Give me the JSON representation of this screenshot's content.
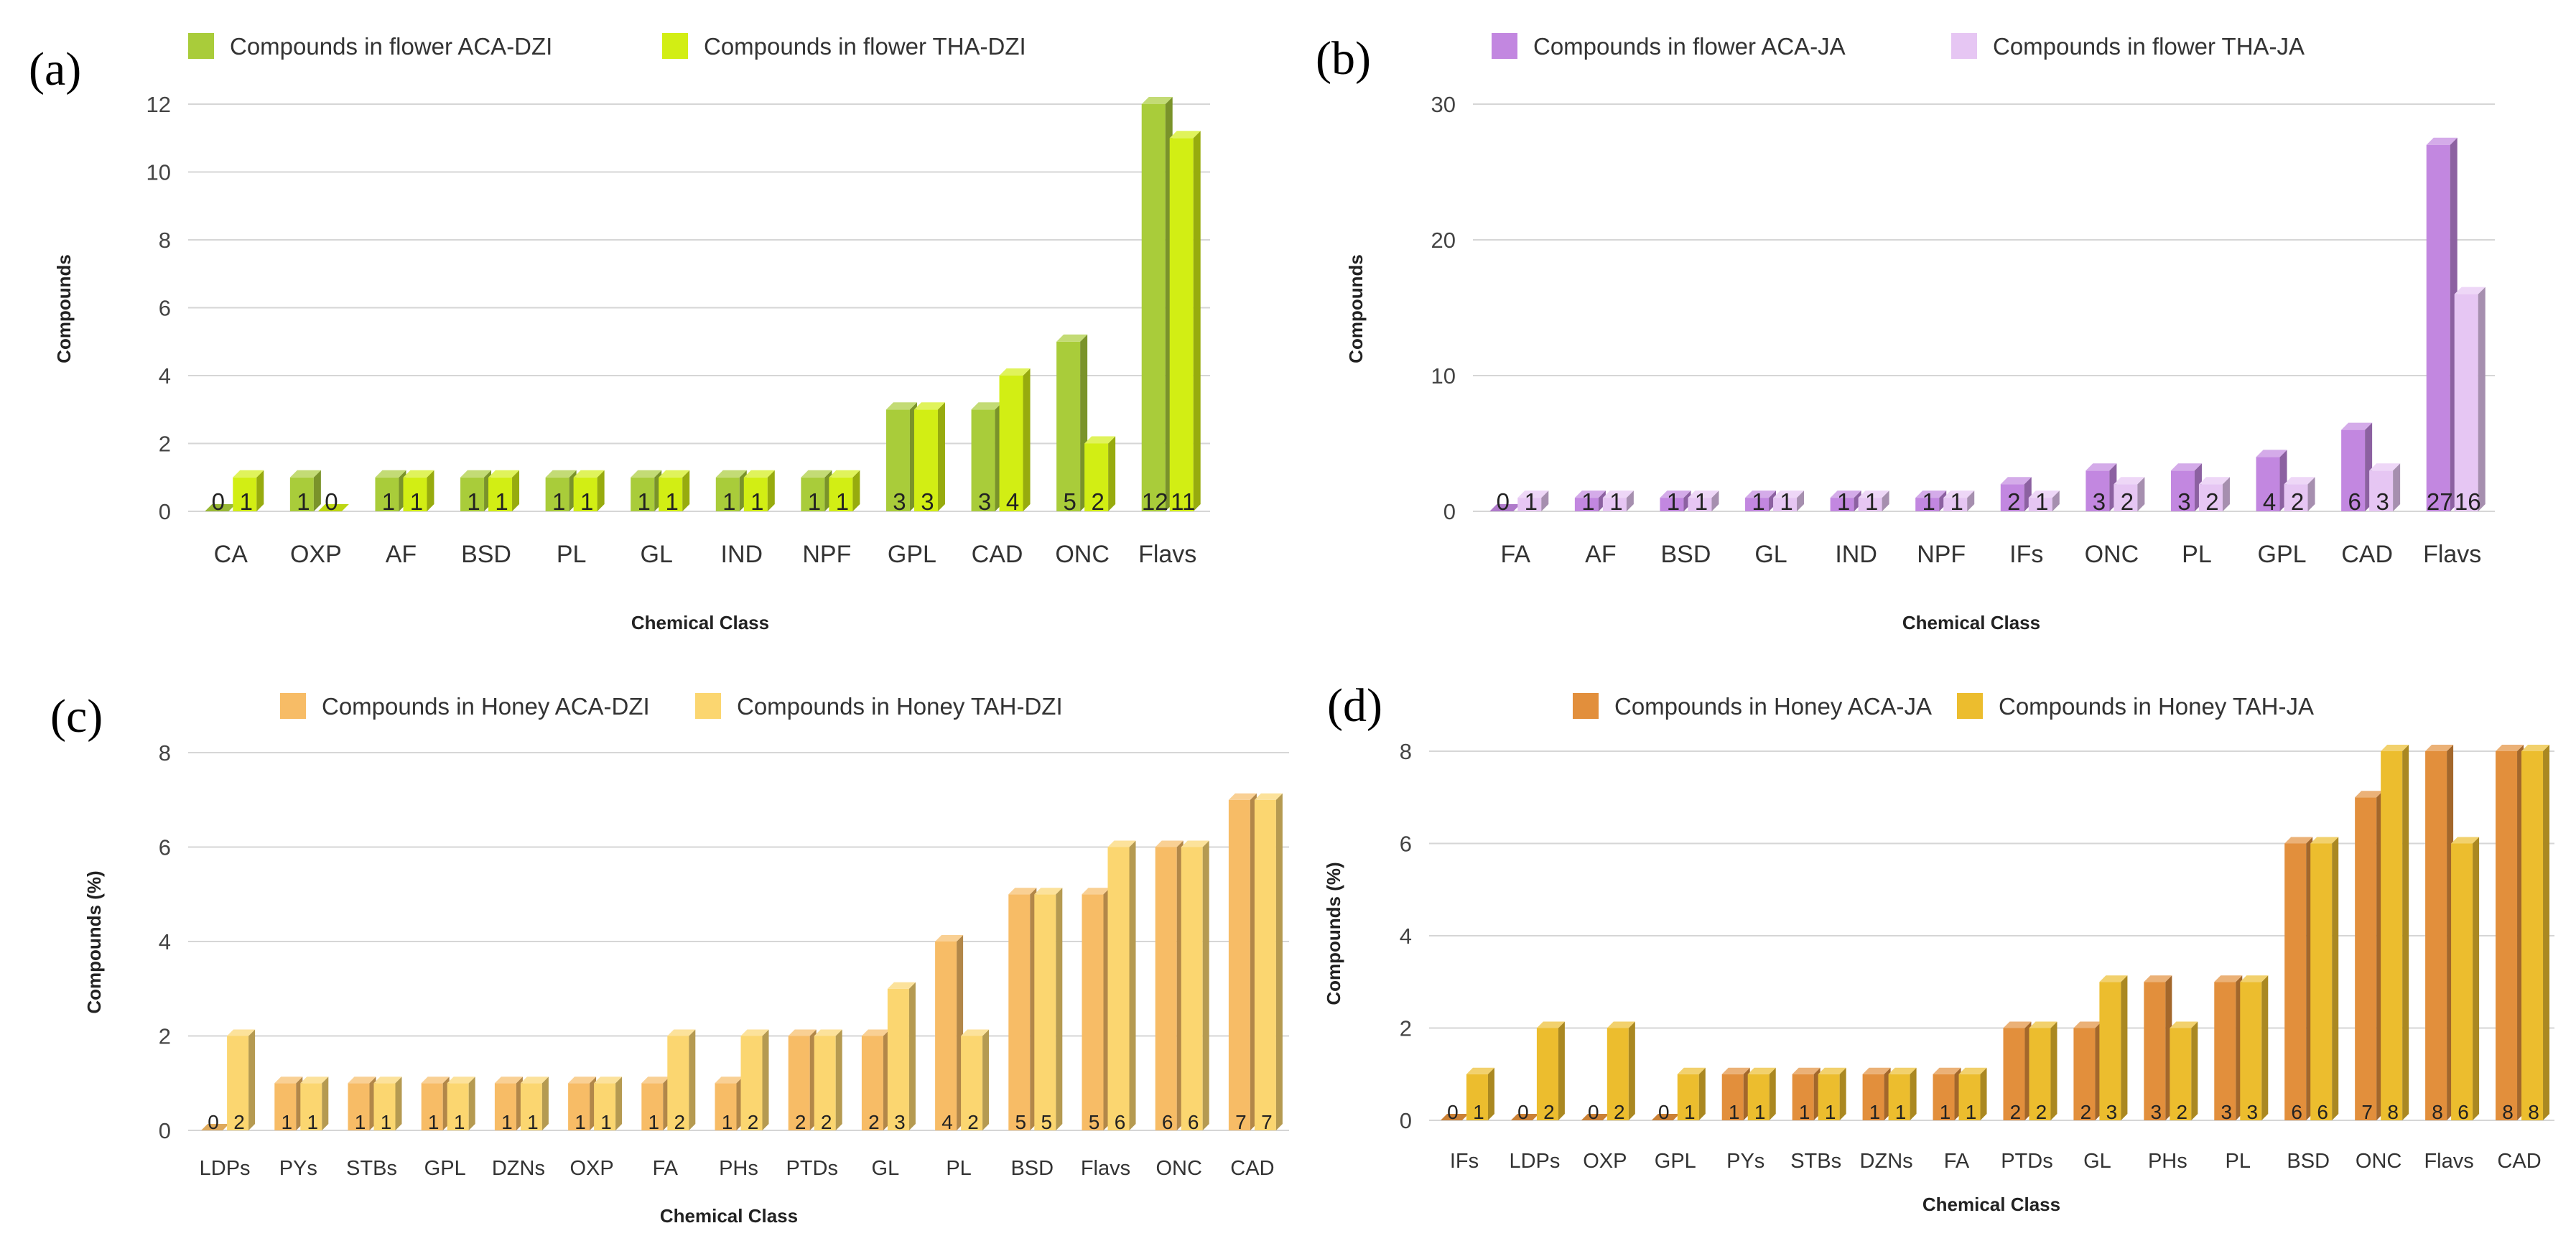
{
  "panels": [
    {
      "id": "a",
      "letter": "(a)",
      "legend": [
        "Compounds in flower ACA-DZI",
        "Compounds in flower THA-DZI"
      ],
      "colors": [
        "#a9cc3a",
        "#d2ee14"
      ],
      "chart_data": {
        "type": "bar",
        "title": "",
        "xlabel": "Chemical Class",
        "ylabel": "Compounds",
        "ylim": [
          0,
          12
        ],
        "yticks": [
          0,
          2,
          4,
          6,
          8,
          10,
          12
        ],
        "categories": [
          "CA",
          "OXP",
          "AF",
          "BSD",
          "PL",
          "GL",
          "IND",
          "NPF",
          "GPL",
          "CAD",
          "ONC",
          "Flavs"
        ],
        "series": [
          {
            "name": "Compounds in flower ACA-DZI",
            "values": [
              0,
              1,
              1,
              1,
              1,
              1,
              1,
              1,
              3,
              3,
              5,
              12
            ]
          },
          {
            "name": "Compounds in flower THA-DZI",
            "values": [
              1,
              0,
              1,
              1,
              1,
              1,
              1,
              1,
              3,
              4,
              2,
              11
            ]
          }
        ]
      }
    },
    {
      "id": "b",
      "letter": "(b)",
      "legend": [
        "Compounds in flower ACA-JA",
        "Compounds in flower THA-JA"
      ],
      "colors": [
        "#c287e0",
        "#e6c6f3"
      ],
      "chart_data": {
        "type": "bar",
        "title": "",
        "xlabel": "Chemical Class",
        "ylabel": "Compounds",
        "ylim": [
          0,
          30
        ],
        "yticks": [
          0,
          10,
          20,
          30
        ],
        "categories": [
          "FA",
          "AF",
          "BSD",
          "GL",
          "IND",
          "NPF",
          "IFs",
          "ONC",
          "PL",
          "GPL",
          "CAD",
          "Flavs"
        ],
        "series": [
          {
            "name": "Compounds in flower ACA-JA",
            "values": [
              0,
              1,
              1,
              1,
              1,
              1,
              2,
              3,
              3,
              4,
              6,
              27
            ]
          },
          {
            "name": "Compounds in flower THA-JA",
            "values": [
              1,
              1,
              1,
              1,
              1,
              1,
              1,
              2,
              2,
              2,
              3,
              16
            ]
          }
        ]
      }
    },
    {
      "id": "c",
      "letter": "(c)",
      "legend": [
        "Compounds in Honey ACA-DZI",
        "Compounds in Honey TAH-DZI"
      ],
      "colors": [
        "#f7bc66",
        "#fbd670"
      ],
      "chart_data": {
        "type": "bar",
        "title": "",
        "xlabel": "Chemical Class",
        "ylabel": "Compounds (%)",
        "ylim": [
          0,
          8
        ],
        "yticks": [
          0,
          2,
          4,
          6,
          8
        ],
        "categories": [
          "LDPs",
          "PYs",
          "STBs",
          "GPL",
          "DZNs",
          "OXP",
          "FA",
          "PHs",
          "PTDs",
          "GL",
          "PL",
          "BSD",
          "Flavs",
          "ONC",
          "CAD"
        ],
        "series": [
          {
            "name": "Compounds in Honey ACA-DZI",
            "values": [
              0,
              1,
              1,
              1,
              1,
              1,
              1,
              1,
              2,
              2,
              4,
              5,
              5,
              6,
              7
            ]
          },
          {
            "name": "Compounds in Honey TAH-DZI",
            "values": [
              2,
              1,
              1,
              1,
              1,
              1,
              2,
              2,
              2,
              3,
              2,
              5,
              6,
              6,
              7
            ]
          }
        ]
      }
    },
    {
      "id": "d",
      "letter": "(d)",
      "legend": [
        "Compounds in Honey ACA-JA",
        "Compounds in Honey TAH-JA"
      ],
      "colors": [
        "#e28f3c",
        "#ecbd2e"
      ],
      "chart_data": {
        "type": "bar",
        "title": "",
        "xlabel": "Chemical Class",
        "ylabel": "Compounds (%)",
        "ylim": [
          0,
          8
        ],
        "yticks": [
          0,
          2,
          4,
          6,
          8
        ],
        "categories": [
          "IFs",
          "LDPs",
          "OXP",
          "GPL",
          "PYs",
          "STBs",
          "DZNs",
          "FA",
          "PTDs",
          "GL",
          "PHs",
          "PL",
          "BSD",
          "ONC",
          "Flavs",
          "CAD"
        ],
        "series": [
          {
            "name": "Compounds in Honey ACA-JA",
            "values": [
              0,
              0,
              0,
              0,
              1,
              1,
              1,
              1,
              2,
              2,
              3,
              3,
              6,
              7,
              8,
              8
            ]
          },
          {
            "name": "Compounds in Honey TAH-JA",
            "values": [
              1,
              2,
              2,
              1,
              1,
              1,
              1,
              1,
              2,
              3,
              2,
              3,
              6,
              8,
              6,
              8
            ]
          }
        ]
      }
    }
  ]
}
